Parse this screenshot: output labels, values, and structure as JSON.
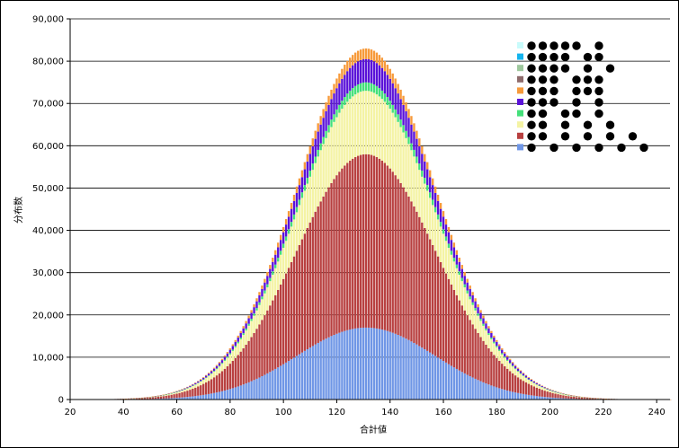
{
  "chart_data": {
    "type": "bar",
    "stacked": true,
    "xlabel": "合計値",
    "ylabel": "分布数",
    "xlim": [
      20,
      245
    ],
    "ylim": [
      0,
      90000
    ],
    "x_ticks": [
      "20",
      "40",
      "60",
      "80",
      "100",
      "120",
      "140",
      "160",
      "180",
      "200",
      "220",
      "240"
    ],
    "y_ticks": [
      "0",
      "10,000",
      "20,000",
      "30,000",
      "40,000",
      "50,000",
      "60,000",
      "70,000",
      "80,000",
      "90,000"
    ],
    "grid": "horizontal",
    "legend_position": "top-right",
    "bar_center": 131,
    "bar_sigma": 26,
    "series": [
      {
        "color": "#6f96e6",
        "peak": 17000,
        "legend_dots": [
          0,
          1,
          2,
          3,
          4,
          5
        ]
      },
      {
        "color": "#b84040",
        "peak": 41000,
        "legend_dots": [
          0,
          0.5,
          1.5,
          2.5,
          3.5,
          4.5
        ]
      },
      {
        "color": "#f4f3a4",
        "peak": 15000,
        "legend_dots": [
          0,
          0.5,
          1.5,
          2.5,
          3.5
        ]
      },
      {
        "color": "#44e07a",
        "peak": 2000,
        "legend_dots": [
          0,
          0.5,
          1.5,
          2,
          3
        ]
      },
      {
        "color": "#5a12d8",
        "peak": 5500,
        "legend_dots": [
          0,
          0.5,
          1,
          2,
          3
        ]
      },
      {
        "color": "#f79a3a",
        "peak": 2500,
        "legend_dots": [
          0,
          0.5,
          1,
          2,
          2.5,
          3
        ]
      },
      {
        "color": "#8e6b6b",
        "peak": 0,
        "legend_dots": [
          0,
          0.5,
          1,
          2,
          2.5,
          3
        ]
      },
      {
        "color": "#9dc79c",
        "peak": 0,
        "legend_dots": [
          0,
          0.5,
          1,
          1.5,
          2.5,
          3.5
        ]
      },
      {
        "color": "#14b4ee",
        "peak": 0,
        "legend_dots": [
          0,
          0.5,
          1,
          1.5,
          2.5,
          3
        ]
      },
      {
        "color": "#c8fbfb",
        "peak": 0,
        "legend_dots": [
          0,
          0.5,
          1,
          1.5,
          2,
          3
        ]
      }
    ]
  }
}
